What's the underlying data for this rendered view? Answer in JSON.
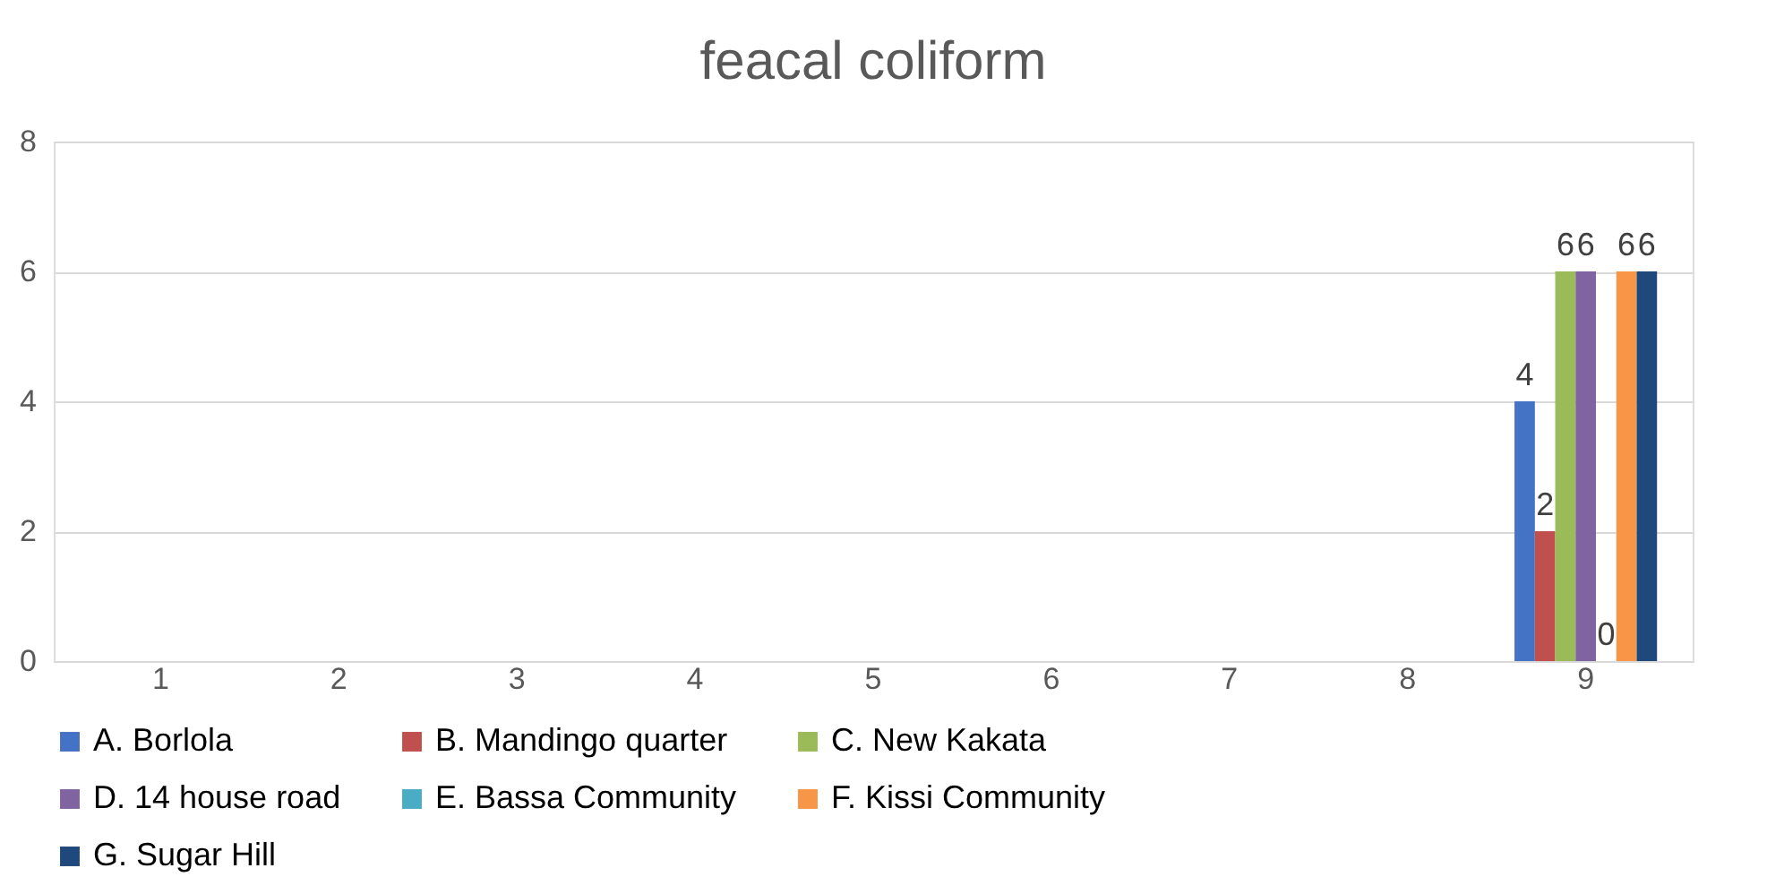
{
  "chart_data": {
    "type": "bar",
    "title": "feacal coliform",
    "categories": [
      "1",
      "2",
      "3",
      "4",
      "5",
      "6",
      "7",
      "8",
      "9"
    ],
    "series": [
      {
        "name": "A. Borlola",
        "color": "#4472c4",
        "values": [
          null,
          null,
          null,
          null,
          null,
          null,
          null,
          null,
          4
        ]
      },
      {
        "name": "B. Mandingo quarter",
        "color": "#c0504d",
        "values": [
          null,
          null,
          null,
          null,
          null,
          null,
          null,
          null,
          2
        ]
      },
      {
        "name": "C. New Kakata",
        "color": "#9bbb59",
        "values": [
          null,
          null,
          null,
          null,
          null,
          null,
          null,
          null,
          6
        ]
      },
      {
        "name": "D. 14 house road",
        "color": "#8064a2",
        "values": [
          null,
          null,
          null,
          null,
          null,
          null,
          null,
          null,
          6
        ]
      },
      {
        "name": "E. Bassa Community",
        "color": "#4bacc6",
        "values": [
          null,
          null,
          null,
          null,
          null,
          null,
          null,
          null,
          0
        ]
      },
      {
        "name": "F. Kissi Community",
        "color": "#f79646",
        "values": [
          null,
          null,
          null,
          null,
          null,
          null,
          null,
          null,
          6
        ]
      },
      {
        "name": "G. Sugar Hill",
        "color": "#1f497d",
        "values": [
          null,
          null,
          null,
          null,
          null,
          null,
          null,
          null,
          6
        ]
      }
    ],
    "ylim": [
      0,
      8
    ],
    "yticks": [
      0,
      2,
      4,
      6,
      8
    ],
    "grid": "y",
    "legend": "bottom",
    "data_labels": true
  }
}
